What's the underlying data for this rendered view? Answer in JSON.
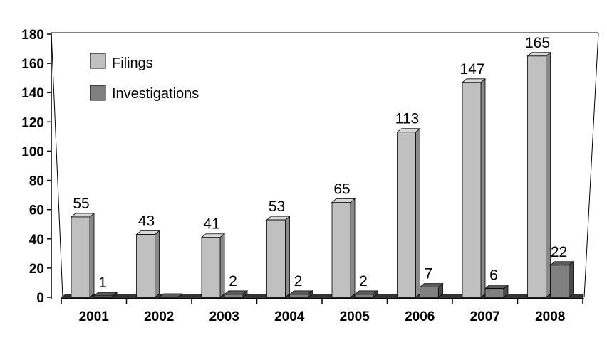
{
  "chart_data": {
    "type": "bar",
    "categories": [
      "2001",
      "2002",
      "2003",
      "2004",
      "2005",
      "2006",
      "2007",
      "2008"
    ],
    "series": [
      {
        "name": "Filings",
        "values": [
          55,
          43,
          41,
          53,
          65,
          113,
          147,
          165
        ],
        "labels": [
          "55",
          "43",
          "41",
          "53",
          "65",
          "113",
          "147",
          "165"
        ]
      },
      {
        "name": "Investigations",
        "values": [
          1,
          0,
          2,
          2,
          2,
          7,
          6,
          22
        ],
        "labels": [
          "1",
          "",
          "2",
          "2",
          "2",
          "7",
          "6",
          "22"
        ]
      }
    ],
    "ylim": [
      0,
      180
    ],
    "yticks": [
      "0",
      "20",
      "40",
      "60",
      "80",
      "100",
      "120",
      "140",
      "160",
      "180"
    ],
    "title": "",
    "xlabel": "",
    "ylabel": "",
    "grid": false,
    "legend": "top-left",
    "style": "3d",
    "colors": {
      "Filings": {
        "front": "#c0c0c0",
        "top": "#d8d8d8",
        "side": "#8a8a8a"
      },
      "Investigations": {
        "front": "#808080",
        "top": "#5a5a5a",
        "side": "#4a4a4a"
      },
      "floor": "#333333"
    }
  }
}
